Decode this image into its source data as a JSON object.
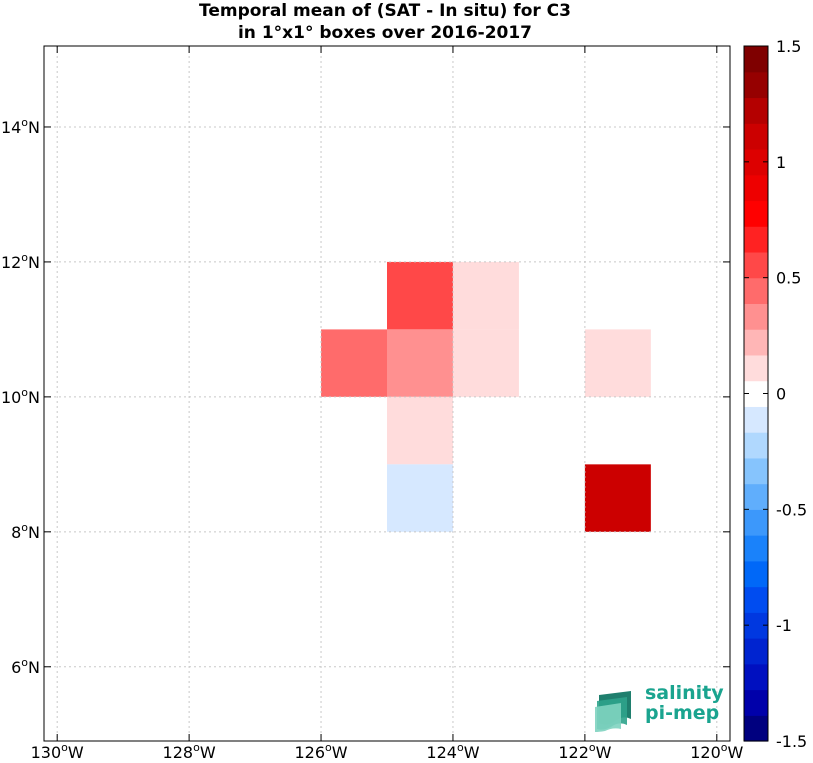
{
  "title": {
    "line1": "Temporal mean of (SAT - In situ) for C3",
    "line2": "in 1°x1° boxes over 2016-2017"
  },
  "logo": {
    "line1": "salinity",
    "line2": "pi-mep",
    "color": "#1aa48f"
  },
  "chart_data": {
    "type": "heatmap",
    "title": "Temporal mean of (SAT - In situ) for C3 in 1°x1° boxes over 2016-2017",
    "xlim": [
      -130.2,
      -119.8
    ],
    "ylim": [
      4.9,
      15.2
    ],
    "x_ticks": [
      {
        "value": -130,
        "label": "130°W"
      },
      {
        "value": -128,
        "label": "128°W"
      },
      {
        "value": -126,
        "label": "126°W"
      },
      {
        "value": -124,
        "label": "124°W"
      },
      {
        "value": -122,
        "label": "122°W"
      },
      {
        "value": -120,
        "label": "120°W"
      }
    ],
    "y_ticks": [
      {
        "value": 6,
        "label": "6°N"
      },
      {
        "value": 8,
        "label": "8°N"
      },
      {
        "value": 10,
        "label": "10°N"
      },
      {
        "value": 12,
        "label": "12°N"
      },
      {
        "value": 14,
        "label": "14°N"
      }
    ],
    "grid": true,
    "cells": [
      {
        "lon_min": -125,
        "lon_max": -124,
        "lat_min": 11,
        "lat_max": 12,
        "value": 0.6
      },
      {
        "lon_min": -124,
        "lon_max": -123,
        "lat_min": 11,
        "lat_max": 12,
        "value": 0.15
      },
      {
        "lon_min": -126,
        "lon_max": -125,
        "lat_min": 10,
        "lat_max": 11,
        "value": 0.4
      },
      {
        "lon_min": -125,
        "lon_max": -124,
        "lat_min": 10,
        "lat_max": 11,
        "value": 0.3
      },
      {
        "lon_min": -124,
        "lon_max": -123,
        "lat_min": 10,
        "lat_max": 11,
        "value": 0.15
      },
      {
        "lon_min": -122,
        "lon_max": -121,
        "lat_min": 10,
        "lat_max": 11,
        "value": 0.15
      },
      {
        "lon_min": -125,
        "lon_max": -124,
        "lat_min": 9,
        "lat_max": 10,
        "value": 0.15
      },
      {
        "lon_min": -125,
        "lon_max": -124,
        "lat_min": 8,
        "lat_max": 9,
        "value": -0.15
      },
      {
        "lon_min": -122,
        "lon_max": -121,
        "lat_min": 8,
        "lat_max": 9,
        "value": 1.1
      }
    ],
    "colorbar": {
      "range": [
        -1.5,
        1.5
      ],
      "ticks": [
        {
          "value": 1.5,
          "label": "1.5"
        },
        {
          "value": 1,
          "label": "1"
        },
        {
          "value": 0.5,
          "label": "0.5"
        },
        {
          "value": 0,
          "label": "0"
        },
        {
          "value": -0.5,
          "label": "-0.5"
        },
        {
          "value": -1,
          "label": "-1"
        },
        {
          "value": -1.5,
          "label": "-1.5"
        }
      ],
      "colors": [
        "#00007f",
        "#0000aa",
        "#0010c0",
        "#0024d0",
        "#0038e0",
        "#004cf0",
        "#0068f8",
        "#1a82fa",
        "#3c98fb",
        "#60aefc",
        "#86c4fd",
        "#b0d8fe",
        "#d6e8ff",
        "#ffffff",
        "#ffdcdc",
        "#ffb6b6",
        "#ff9090",
        "#ff6b6b",
        "#ff4848",
        "#ff2222",
        "#ff0000",
        "#ee0000",
        "#dd0000",
        "#cc0000",
        "#b40000",
        "#960000",
        "#7f0000"
      ]
    }
  }
}
